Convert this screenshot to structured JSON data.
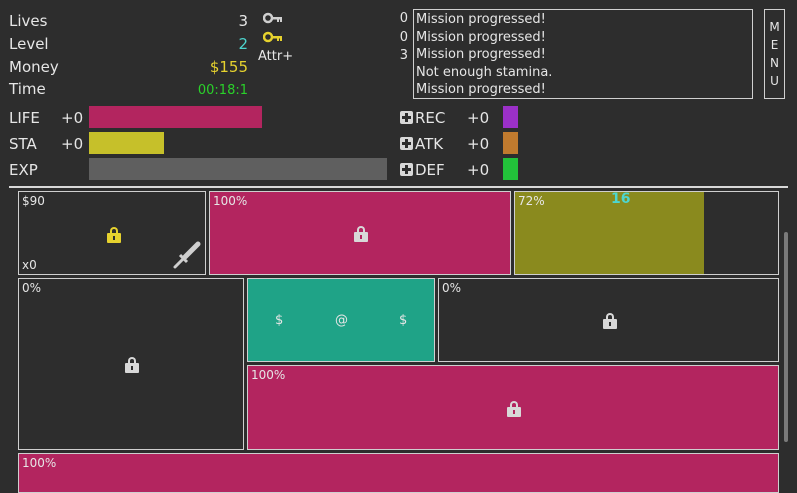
{
  "stats": {
    "lives_label": "Lives",
    "lives_value": "3",
    "level_label": "Level",
    "level_value": "2",
    "money_label": "Money",
    "money_value": "$155",
    "time_label": "Time",
    "time_value": "00:18:1"
  },
  "keys": {
    "attr_label": "Attr+"
  },
  "counters": [
    "0",
    "0",
    "3"
  ],
  "log": {
    "lines": [
      "Mission progressed!",
      "Mission progressed!",
      "Mission progressed!",
      "Not enough stamina.",
      "Mission progressed!"
    ]
  },
  "menu": {
    "letters": [
      "M",
      "E",
      "N",
      "U"
    ]
  },
  "bars": {
    "life": {
      "label": "LIFE",
      "delta": "+0",
      "fill": 0.58
    },
    "sta": {
      "label": "STA",
      "delta": "+0",
      "fill": 0.25
    },
    "exp": {
      "label": "EXP",
      "fill": 1.0
    }
  },
  "attrs": {
    "rec": {
      "label": "REC",
      "delta": "+0",
      "color": "#9b30c8"
    },
    "atk": {
      "label": "ATK",
      "delta": "+0",
      "color": "#c07a2e"
    },
    "def": {
      "label": "DEF",
      "delta": "+0",
      "color": "#22c23a"
    }
  },
  "tiles": {
    "t1": {
      "price": "$90",
      "count": "x0"
    },
    "t2": {
      "pct": "100%"
    },
    "t3": {
      "pct": "72%",
      "number": "16",
      "fill": 0.72
    },
    "t4": {
      "pct": "0%"
    },
    "t5": {
      "left": "$",
      "center": "@",
      "right": "$"
    },
    "t6": {
      "pct": "0%"
    },
    "t7": {
      "pct": "100%"
    },
    "t8": {
      "pct": "100%"
    }
  },
  "colors": {
    "magenta": "#b3255f",
    "olive": "#8a8a1e",
    "teal": "#1fa387",
    "yellow": "#e6d22e",
    "cyan": "#4dd6cf",
    "green": "#2ad12a"
  }
}
